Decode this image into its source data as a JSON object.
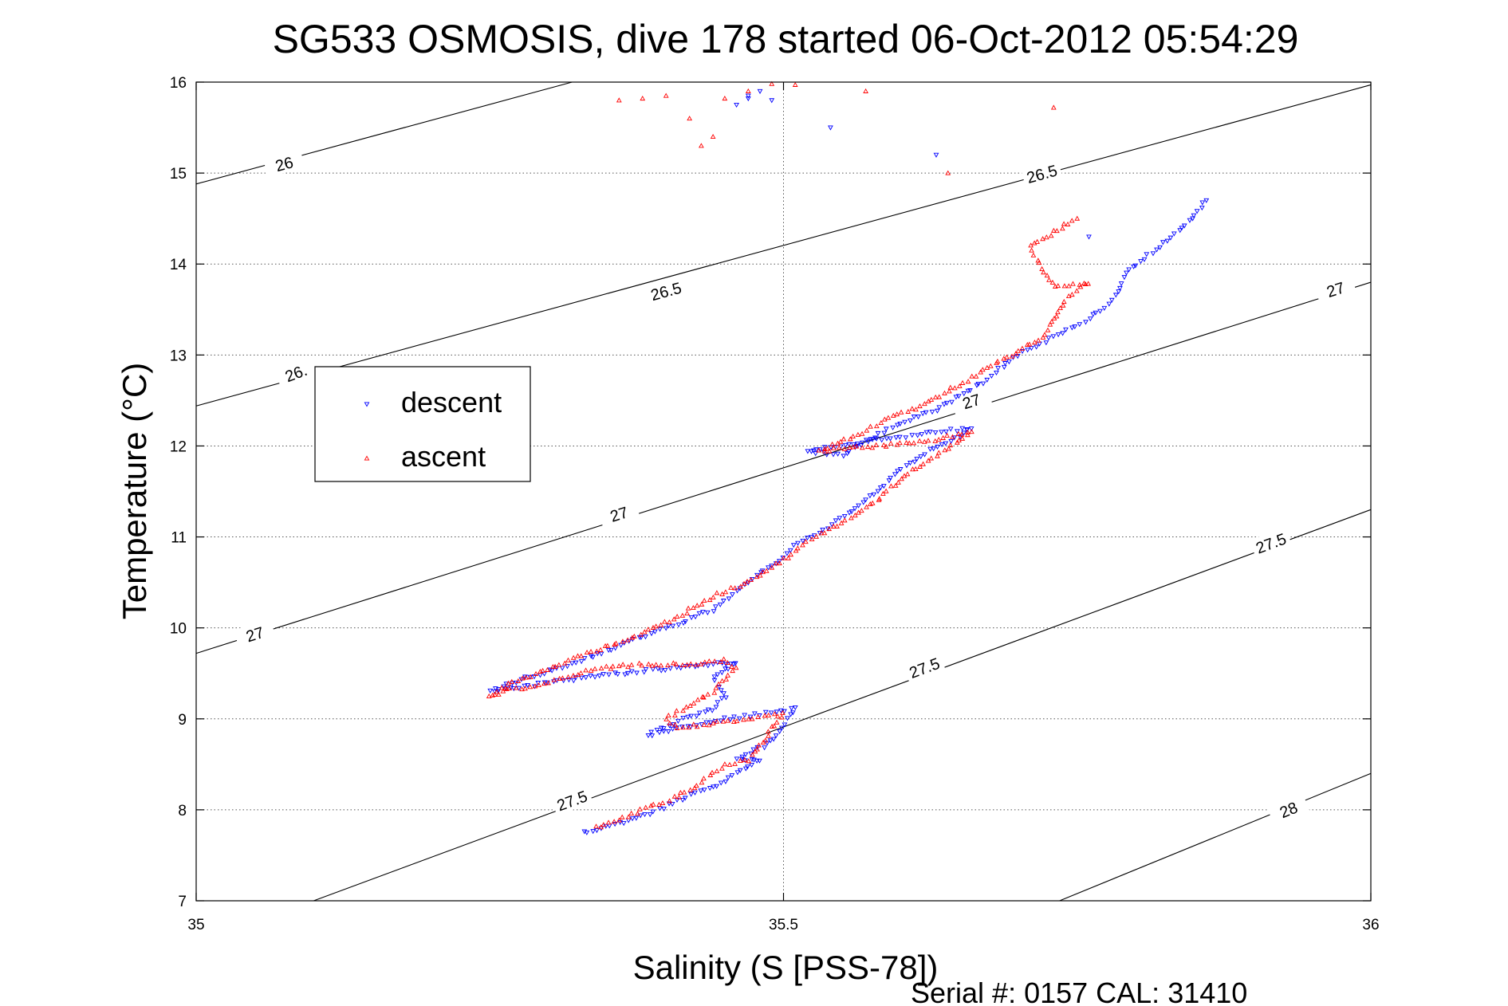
{
  "chart_data": {
    "type": "scatter",
    "title": "SG533 OSMOSIS, dive 178 started 06-Oct-2012 05:54:29",
    "xlabel": "Salinity (S [PSS-78])",
    "ylabel": "Temperature (°C)",
    "xlim": [
      35,
      36
    ],
    "ylim": [
      7,
      16
    ],
    "xticks": [
      {
        "value": 35,
        "label": "35"
      },
      {
        "value": 35.5,
        "label": "35.5"
      },
      {
        "value": 36,
        "label": "36"
      }
    ],
    "yticks": [
      {
        "value": 7,
        "label": "7"
      },
      {
        "value": 8,
        "label": "8"
      },
      {
        "value": 9,
        "label": "9"
      },
      {
        "value": 10,
        "label": "10"
      },
      {
        "value": 11,
        "label": "11"
      },
      {
        "value": 12,
        "label": "12"
      },
      {
        "value": 13,
        "label": "13"
      },
      {
        "value": 14,
        "label": "14"
      },
      {
        "value": 15,
        "label": "15"
      },
      {
        "value": 16,
        "label": "16"
      }
    ],
    "grid": "dotted at x=35.5 and every y tick",
    "legend_position": "upper-left",
    "footer": "Serial #: 0157  CAL: 31410",
    "density_contours": [
      {
        "level": "26",
        "lines": [
          [
            35,
            14.88,
            35.32,
            16.0
          ]
        ],
        "labels": [
          [
            35.075,
            15.1,
            "26"
          ]
        ]
      },
      {
        "level": "26.5",
        "lines": [
          [
            35,
            12.44,
            36,
            15.97
          ]
        ],
        "labels": [
          [
            35.4,
            13.7,
            "26.5"
          ],
          [
            35.72,
            14.99,
            "26.5"
          ]
        ]
      },
      {
        "level": "26.",
        "lines": [],
        "labels": [
          [
            35.085,
            12.8,
            "26."
          ]
        ]
      },
      {
        "level": "27",
        "lines": [
          [
            35,
            9.72,
            36,
            13.8
          ]
        ],
        "labels": [
          [
            35.05,
            9.93,
            "27"
          ],
          [
            35.36,
            11.25,
            "27"
          ],
          [
            35.66,
            12.49,
            "27"
          ],
          [
            35.97,
            13.72,
            "27"
          ]
        ]
      },
      {
        "level": "27.5",
        "lines": [
          [
            35.1,
            7.0,
            36,
            11.3
          ]
        ],
        "labels": [
          [
            35.32,
            8.1,
            "27.5"
          ],
          [
            35.62,
            9.56,
            "27.5"
          ],
          [
            35.915,
            10.93,
            "27.5"
          ]
        ]
      },
      {
        "level": "28",
        "lines": [
          [
            35.735,
            7.0,
            36,
            8.4
          ]
        ],
        "labels": [
          [
            35.93,
            8.0,
            "28"
          ]
        ]
      }
    ],
    "series": [
      {
        "name": "descent",
        "color": "#0000ff",
        "marker": "triangle-down",
        "segments": [
          [
            [
              35.33,
              7.75
            ],
            [
              35.36,
              7.85
            ],
            [
              35.39,
              7.98
            ],
            [
              35.41,
              8.1
            ],
            [
              35.44,
              8.25
            ],
            [
              35.46,
              8.4
            ],
            [
              35.48,
              8.55
            ],
            [
              35.46,
              8.55
            ],
            [
              35.49,
              8.75
            ],
            [
              35.5,
              8.95
            ],
            [
              35.51,
              9.12
            ],
            [
              35.48,
              9.05
            ],
            [
              35.45,
              9.0
            ],
            [
              35.43,
              8.95
            ],
            [
              35.41,
              8.9
            ],
            [
              35.385,
              8.82
            ],
            [
              35.41,
              8.98
            ],
            [
              35.44,
              9.1
            ],
            [
              35.45,
              9.25
            ],
            [
              35.44,
              9.45
            ],
            [
              35.46,
              9.62
            ],
            [
              35.44,
              9.6
            ],
            [
              35.4,
              9.55
            ],
            [
              35.36,
              9.5
            ],
            [
              35.3,
              9.4
            ],
            [
              35.25,
              9.3
            ],
            [
              35.28,
              9.45
            ],
            [
              35.32,
              9.6
            ],
            [
              35.35,
              9.75
            ],
            [
              35.38,
              9.9
            ],
            [
              35.41,
              10.05
            ],
            [
              35.44,
              10.2
            ],
            [
              35.46,
              10.4
            ],
            [
              35.48,
              10.6
            ],
            [
              35.5,
              10.78
            ],
            [
              35.51,
              10.9
            ],
            [
              35.53,
              11.05
            ],
            [
              35.555,
              11.25
            ],
            [
              35.58,
              11.5
            ],
            [
              35.6,
              11.75
            ],
            [
              35.625,
              11.95
            ],
            [
              35.65,
              12.1
            ],
            [
              35.66,
              12.2
            ],
            [
              35.63,
              12.15
            ],
            [
              35.6,
              12.1
            ],
            [
              35.56,
              12.03
            ],
            [
              35.52,
              11.95
            ],
            [
              35.55,
              11.9
            ],
            [
              35.57,
              12.05
            ],
            [
              35.6,
              12.25
            ],
            [
              35.63,
              12.4
            ],
            [
              35.65,
              12.55
            ],
            [
              35.67,
              12.7
            ],
            [
              35.68,
              12.82
            ],
            [
              35.7,
              13.0
            ],
            [
              35.73,
              13.2
            ],
            [
              35.76,
              13.4
            ],
            [
              35.78,
              13.6
            ],
            [
              35.79,
              13.85
            ],
            [
              35.8,
              14.0
            ],
            [
              35.82,
              14.2
            ],
            [
              35.84,
              14.4
            ],
            [
              35.86,
              14.7
            ]
          ],
          [
            [
              35.47,
              15.85
            ],
            [
              35.46,
              15.75
            ],
            [
              35.47,
              15.82
            ],
            [
              35.48,
              15.9
            ],
            [
              35.49,
              15.8
            ],
            [
              35.54,
              15.5
            ],
            [
              35.63,
              15.2
            ],
            [
              35.76,
              14.3
            ]
          ]
        ]
      },
      {
        "name": "ascent",
        "color": "#ff0000",
        "marker": "triangle-up",
        "segments": [
          [
            [
              35.34,
              7.8
            ],
            [
              35.36,
              7.9
            ],
            [
              35.39,
              8.05
            ],
            [
              35.41,
              8.15
            ],
            [
              35.43,
              8.3
            ],
            [
              35.45,
              8.5
            ],
            [
              35.47,
              8.55
            ],
            [
              35.48,
              8.7
            ],
            [
              35.49,
              8.9
            ],
            [
              35.5,
              9.05
            ],
            [
              35.47,
              9.0
            ],
            [
              35.44,
              8.95
            ],
            [
              35.41,
              8.9
            ],
            [
              35.4,
              9.0
            ],
            [
              35.42,
              9.15
            ],
            [
              35.44,
              9.3
            ],
            [
              35.45,
              9.45
            ],
            [
              35.46,
              9.55
            ],
            [
              35.45,
              9.65
            ],
            [
              35.43,
              9.6
            ],
            [
              35.38,
              9.6
            ],
            [
              35.34,
              9.55
            ],
            [
              35.3,
              9.4
            ],
            [
              35.26,
              9.3
            ],
            [
              35.25,
              9.25
            ],
            [
              35.27,
              9.4
            ],
            [
              35.31,
              9.6
            ],
            [
              35.34,
              9.75
            ],
            [
              35.37,
              9.9
            ],
            [
              35.4,
              10.05
            ],
            [
              35.42,
              10.2
            ],
            [
              35.44,
              10.35
            ],
            [
              35.47,
              10.5
            ],
            [
              35.5,
              10.75
            ],
            [
              35.52,
              10.95
            ],
            [
              35.55,
              11.15
            ],
            [
              35.58,
              11.4
            ],
            [
              35.6,
              11.65
            ],
            [
              35.63,
              11.9
            ],
            [
              35.66,
              12.15
            ],
            [
              35.62,
              12.05
            ],
            [
              35.58,
              12.0
            ],
            [
              35.53,
              11.95
            ],
            [
              35.56,
              12.1
            ],
            [
              35.59,
              12.3
            ],
            [
              35.62,
              12.45
            ],
            [
              35.64,
              12.6
            ],
            [
              35.66,
              12.75
            ],
            [
              35.68,
              12.9
            ],
            [
              35.7,
              13.05
            ],
            [
              35.72,
              13.2
            ],
            [
              35.73,
              13.4
            ],
            [
              35.74,
              13.6
            ],
            [
              35.76,
              13.8
            ],
            [
              35.73,
              13.75
            ],
            [
              35.72,
              13.95
            ],
            [
              35.71,
              14.2
            ],
            [
              35.73,
              14.35
            ],
            [
              35.75,
              14.5
            ]
          ],
          [
            [
              35.36,
              15.8
            ],
            [
              35.38,
              15.82
            ],
            [
              35.4,
              15.85
            ],
            [
              35.45,
              15.82
            ],
            [
              35.47,
              15.9
            ],
            [
              35.49,
              15.98
            ],
            [
              35.51,
              15.97
            ],
            [
              35.42,
              15.6
            ],
            [
              35.44,
              15.4
            ],
            [
              35.43,
              15.3
            ],
            [
              35.57,
              15.9
            ],
            [
              35.64,
              15.0
            ],
            [
              35.73,
              15.72
            ]
          ]
        ]
      }
    ]
  }
}
